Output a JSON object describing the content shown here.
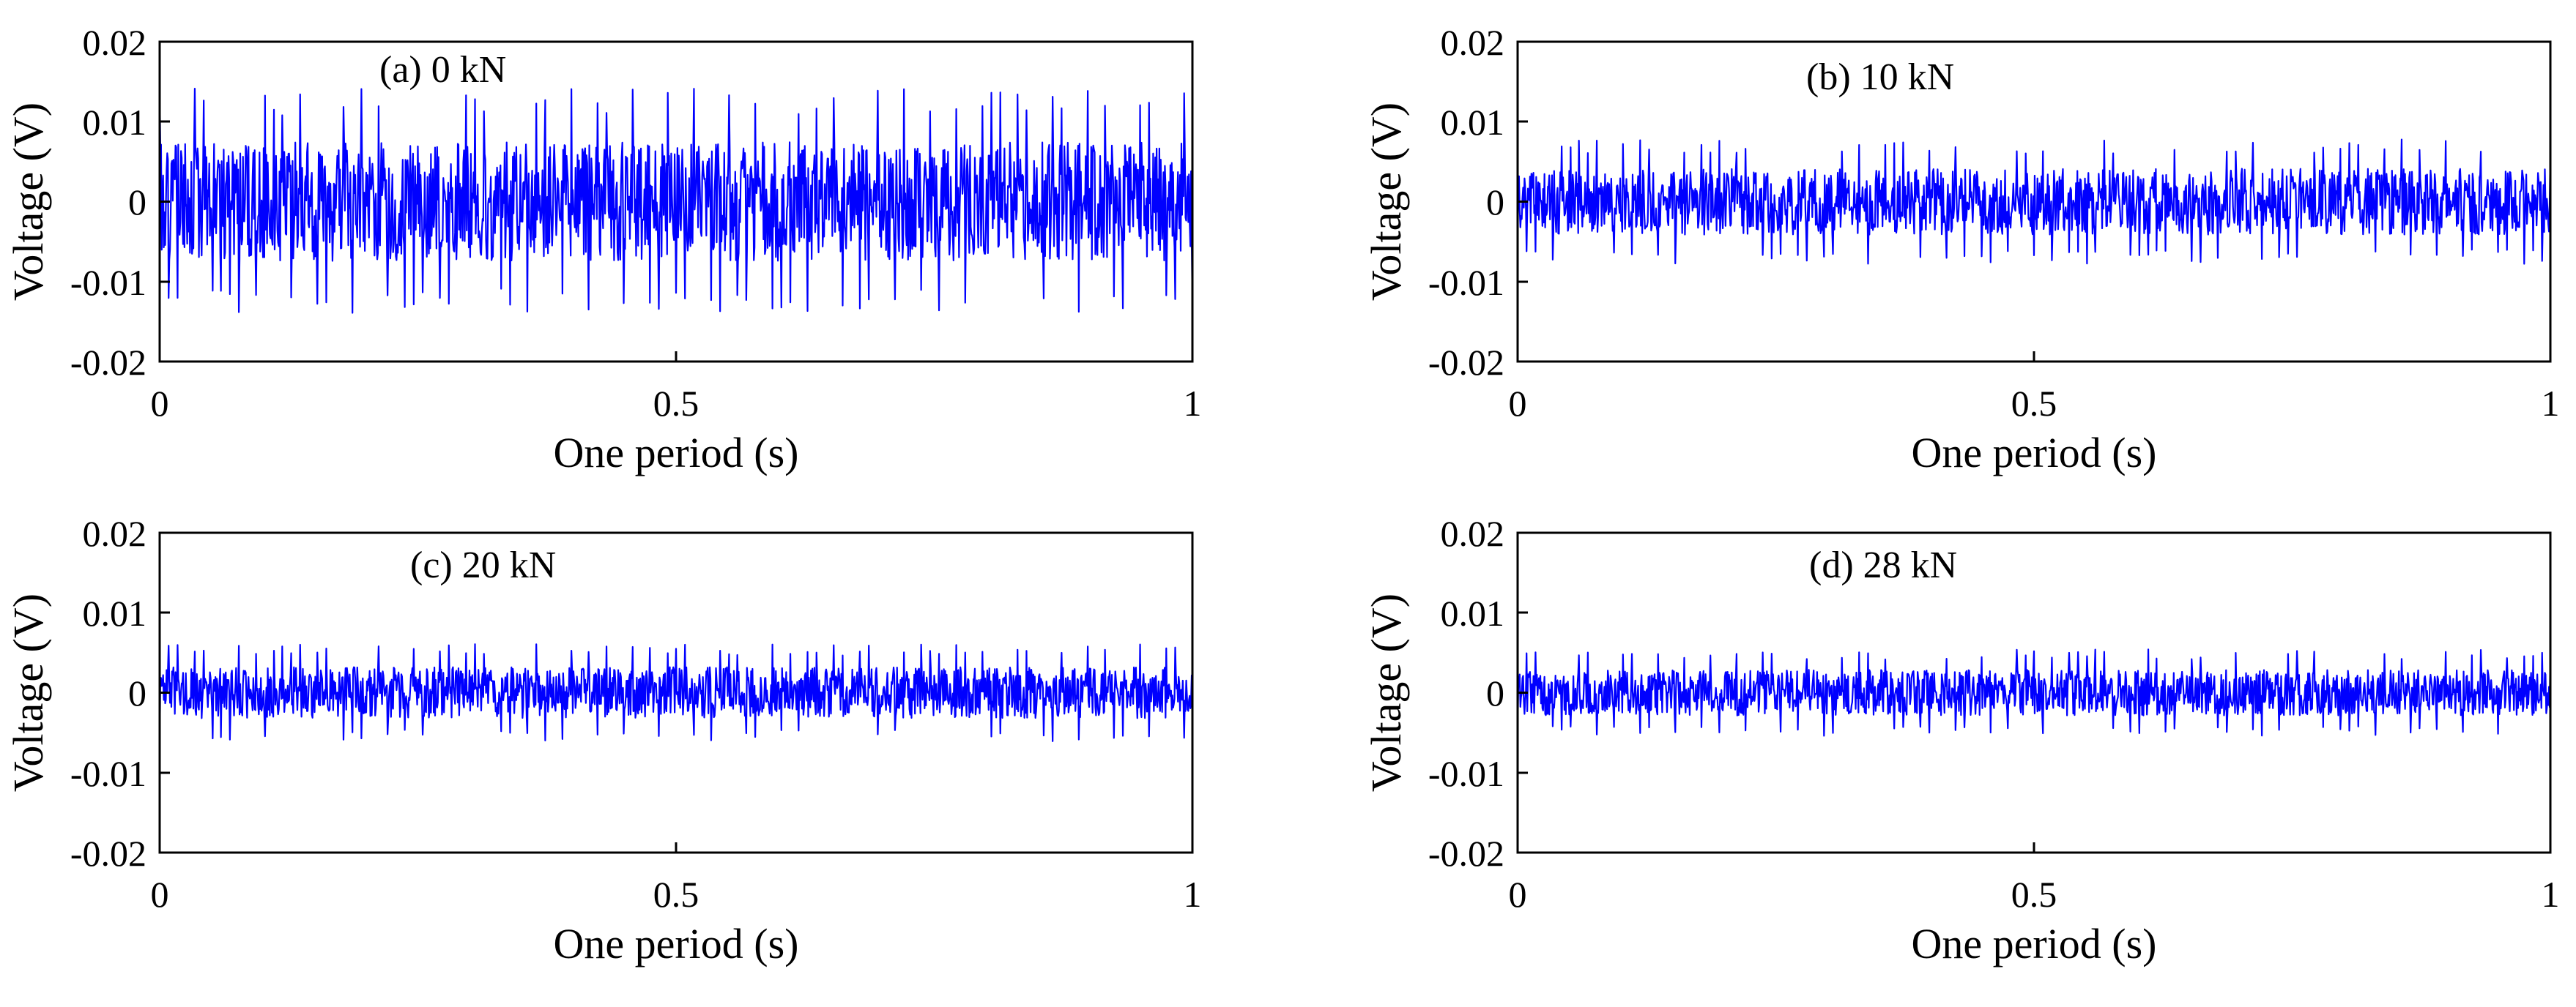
{
  "figure": {
    "background": "#ffffff",
    "axis_color": "#000000",
    "series_color": "#0000ff"
  },
  "chart_data": [
    {
      "type": "line",
      "title": "(a) 0 kN",
      "xlabel": "One period (s)",
      "ylabel": "Voltage (V)",
      "xlim": [
        0,
        1
      ],
      "ylim": [
        -0.02,
        0.02
      ],
      "xticks": [
        "0",
        "0.5",
        "1"
      ],
      "yticks": [
        "0.02",
        "0.01",
        "0",
        "-0.01",
        "-0.02"
      ],
      "grid": false,
      "series": [
        {
          "color": "#0000ff",
          "periodic_peak_amplitude": 0.0135,
          "max": 0.0142,
          "min": -0.0152,
          "mean": 0,
          "x_start": 0,
          "x_end": 1
        }
      ]
    },
    {
      "type": "line",
      "title": "(b) 10 kN",
      "xlabel": "One period (s)",
      "ylabel": "Voltage (V)",
      "xlim": [
        0,
        1
      ],
      "ylim": [
        -0.02,
        0.02
      ],
      "xticks": [
        "0",
        "0.5",
        "1"
      ],
      "yticks": [
        "0.02",
        "0.01",
        "0",
        "-0.01",
        "-0.02"
      ],
      "grid": false,
      "series": [
        {
          "color": "#0000ff",
          "periodic_peak_amplitude": 0.0075,
          "max": 0.0085,
          "min": -0.0082,
          "mean": 0,
          "x_start": 0,
          "x_end": 1
        }
      ]
    },
    {
      "type": "line",
      "title": "(c) 20 kN",
      "xlabel": "One period (s)",
      "ylabel": "Voltage (V)",
      "xlim": [
        0,
        1
      ],
      "ylim": [
        -0.02,
        0.02
      ],
      "xticks": [
        "0",
        "0.5",
        "1"
      ],
      "yticks": [
        "0.02",
        "0.01",
        "0",
        "-0.01",
        "-0.02"
      ],
      "grid": false,
      "series": [
        {
          "color": "#0000ff",
          "periodic_peak_amplitude": 0.0058,
          "max": 0.0062,
          "min": -0.0065,
          "mean": 0,
          "x_start": 0,
          "x_end": 1
        }
      ]
    },
    {
      "type": "line",
      "title": "(d) 28 kN",
      "xlabel": "One period (s)",
      "ylabel": "Voltage (V)",
      "xlim": [
        0,
        1
      ],
      "ylim": [
        -0.02,
        0.02
      ],
      "xticks": [
        "0",
        "0.5",
        "1"
      ],
      "yticks": [
        "0.02",
        "0.01",
        "0",
        "-0.01",
        "-0.02"
      ],
      "grid": false,
      "series": [
        {
          "color": "#0000ff",
          "periodic_peak_amplitude": 0.0052,
          "max": 0.0057,
          "min": -0.006,
          "mean": 0,
          "x_start": 0,
          "x_end": 1
        }
      ]
    }
  ]
}
